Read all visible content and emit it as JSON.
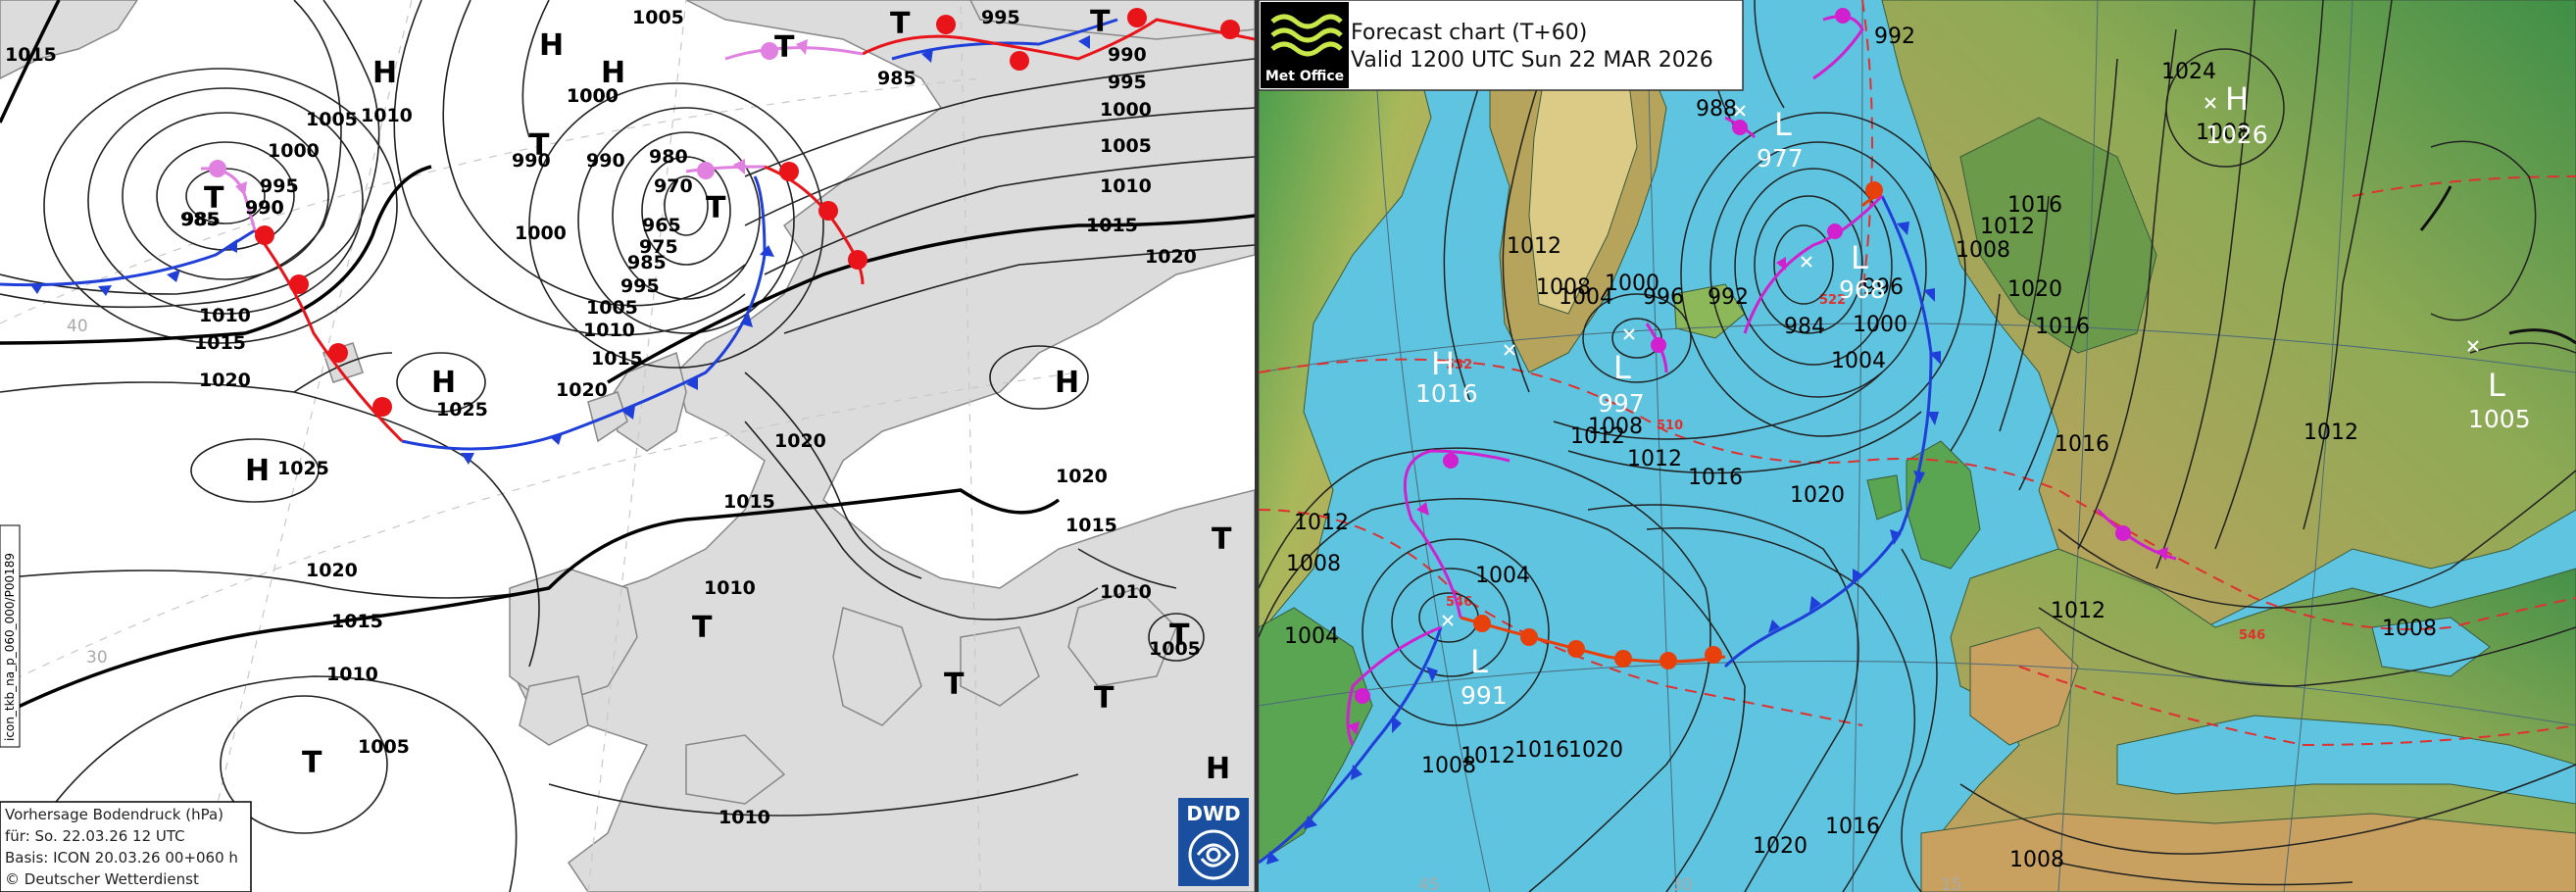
{
  "dwd": {
    "isobar_labels": [
      "1015",
      "1005",
      "1005",
      "1000",
      "995",
      "990",
      "985",
      "1010",
      "1015",
      "1020",
      "1010",
      "1000",
      "990",
      "980",
      "970",
      "965",
      "975",
      "985",
      "995",
      "1000",
      "1005",
      "1010",
      "1015",
      "1020",
      "995",
      "985",
      "990",
      "995",
      "1000",
      "1005",
      "1010",
      "1015",
      "1020",
      "1020",
      "1015",
      "1020",
      "1015",
      "1010",
      "1020",
      "1015",
      "1010",
      "1005",
      "1010",
      "1005",
      "1010"
    ],
    "centers": [
      "H",
      "H",
      "T",
      "T",
      "T",
      "H",
      "H",
      "H",
      "T",
      "T",
      "T",
      "T",
      "T",
      "T",
      "H"
    ],
    "center_values": [
      "985",
      "990",
      "1000",
      "990",
      "1025",
      "1025"
    ],
    "grid_labels": [
      "40",
      "30"
    ],
    "legend": {
      "line1": "Vorhersage Bodendruck (hPa)",
      "line2": "für: So. 22.03.26  12 UTC",
      "line3": "Basis: ICON  20.03.26 00+060 h",
      "line4": "© Deutscher Wetterdienst"
    },
    "side_code": "icon_tkb_na_p_060_000/P00189",
    "logo_text": "DWD",
    "colors": {
      "warm_front": "#e8141a",
      "cold_front": "#1f3fd8",
      "occlusion": "#e080e0",
      "land": "#dcdcdc",
      "sea": "#ffffff"
    }
  },
  "metoffice": {
    "title_line1": "Forecast chart (T+60)",
    "title_line2": "Valid 1200 UTC Sun 22 MAR 2026",
    "logo_text": "Met Office",
    "isobar_labels": [
      "992",
      "988",
      "1008",
      "1012",
      "1004",
      "1000",
      "996",
      "992",
      "984",
      "1004",
      "1000",
      "996",
      "1008",
      "1012",
      "1016",
      "1008",
      "1012",
      "1024",
      "1020",
      "1016",
      "1008",
      "1012",
      "1004",
      "1016",
      "1020",
      "1008",
      "1004",
      "1012",
      "1008",
      "1012",
      "1016",
      "1020",
      "1016",
      "1012",
      "1008",
      "1020",
      "1016",
      "1012",
      "1008"
    ],
    "centers": [
      {
        "sym": "L",
        "val": "977"
      },
      {
        "sym": "L",
        "val": "968"
      },
      {
        "sym": "H",
        "val": "1026"
      },
      {
        "sym": "H",
        "val": "1016"
      },
      {
        "sym": "L",
        "val": "997"
      },
      {
        "sym": "L",
        "val": "1005"
      },
      {
        "sym": "L",
        "val": "991"
      }
    ],
    "thickness_labels": [
      "532",
      "510",
      "522",
      "546",
      "546"
    ],
    "grid_labels": [
      "45",
      "30",
      "15"
    ],
    "colors": {
      "sea": "#5ec4e0",
      "isobar": "#222222",
      "thickness": "#e03030",
      "warm_front": "#e8400a",
      "cold_front": "#1f3fd8",
      "occlusion": "#d020d0"
    }
  }
}
